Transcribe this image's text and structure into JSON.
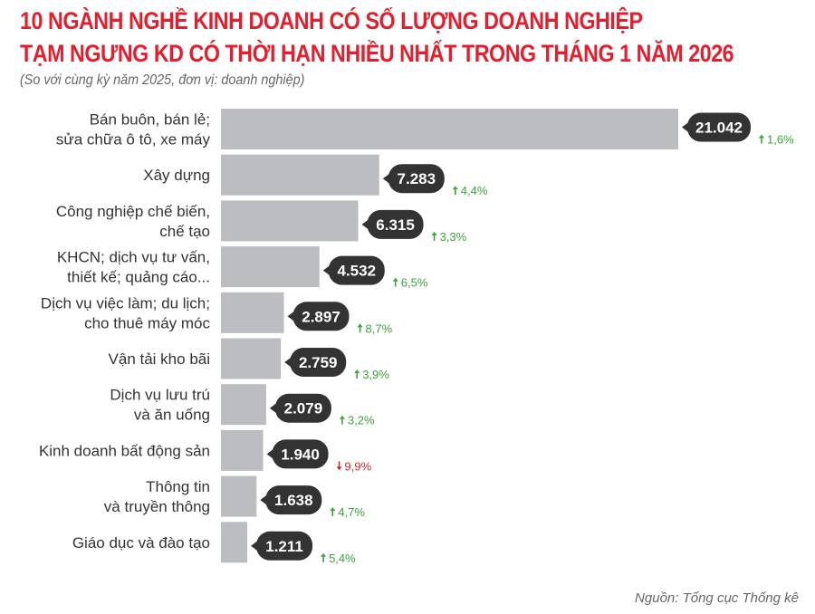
{
  "title_line1": "10 NGÀNH NGHỀ KINH DOANH CÓ SỐ LƯỢNG DOANH NGHIỆP",
  "title_line2": "TẠM NGƯNG KD CÓ THỜI HẠN NHIỀU NHẤT TRONG THÁNG 1 NĂM 2026",
  "subtitle": "(So với cùng kỳ năm 2025, đơn vị: doanh nghiệp)",
  "source": "Nguồn: Tổng cục Thống kê",
  "colors": {
    "bar": "#bcbdc0",
    "label_bg": "#333333",
    "up": "#3aa53a",
    "down": "#d7262e",
    "title": "#e31e2d"
  },
  "chart_data": {
    "type": "bar",
    "orientation": "horizontal",
    "title": "10 NGÀNH NGHỀ KINH DOANH CÓ SỐ LƯỢNG DOANH NGHIỆP TẠM NGƯNG KD CÓ THỜI HẠN NHIỀU NHẤT TRONG THÁNG 1 NĂM 2026",
    "categories": [
      [
        "Bán buôn, bán lẻ;",
        "sửa chữa ô tô, xe máy"
      ],
      [
        "Xây dựng"
      ],
      [
        "Công nghiệp chế biến,",
        "chế tạo"
      ],
      [
        "KHCN; dịch vụ tư vấn,",
        "thiết kế; quảng cáo..."
      ],
      [
        "Dịch vụ việc làm; du lịch;",
        "cho thuê máy móc"
      ],
      [
        "Vận tải kho bãi"
      ],
      [
        "Dịch vụ lưu trú",
        "và ăn uống"
      ],
      [
        "Kinh doanh bất động sản"
      ],
      [
        "Thông tin",
        "và truyền thông"
      ],
      [
        "Giáo dục và đào tạo"
      ]
    ],
    "values": [
      21042,
      7283,
      6315,
      4532,
      2897,
      2759,
      2079,
      1940,
      1638,
      1211
    ],
    "value_labels": [
      "21.042",
      "7.283",
      "6.315",
      "4.532",
      "2.897",
      "2.759",
      "2.079",
      "1.940",
      "1.638",
      "1.211"
    ],
    "change_labels": [
      "1,6%",
      "4,4%",
      "3,3%",
      "6,5%",
      "8,7%",
      "3,9%",
      "3,2%",
      "9,9%",
      "4,7%",
      "5,4%"
    ],
    "change_direction": [
      "up",
      "up",
      "up",
      "up",
      "up",
      "up",
      "up",
      "down",
      "up",
      "up"
    ],
    "xlim": [
      0,
      21042
    ],
    "grid": false
  }
}
